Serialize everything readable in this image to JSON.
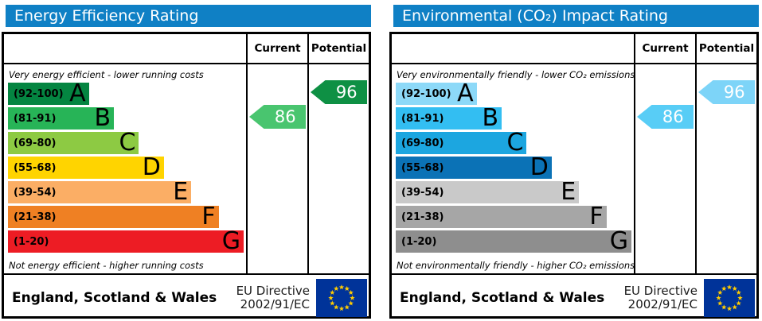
{
  "panels": [
    {
      "title": "Energy Efficiency Rating",
      "title_bg": "#0f80c5",
      "columns": {
        "current_label": "Current",
        "potential_label": "Potential"
      },
      "top_note": "Very energy efficient - lower running costs",
      "bottom_note": "Not energy efficient - higher running costs",
      "bands": [
        {
          "range": "(92-100)",
          "letter": "A",
          "color": "#048541",
          "width_pct": 34
        },
        {
          "range": "(81-91)",
          "letter": "B",
          "color": "#27b457",
          "width_pct": 44.5
        },
        {
          "range": "(69-80)",
          "letter": "C",
          "color": "#8dca43",
          "width_pct": 55
        },
        {
          "range": "(55-68)",
          "letter": "D",
          "color": "#ffd400",
          "width_pct": 65.5
        },
        {
          "range": "(39-54)",
          "letter": "E",
          "color": "#fbae65",
          "width_pct": 77
        },
        {
          "range": "(21-38)",
          "letter": "F",
          "color": "#ef8023",
          "width_pct": 88.5
        },
        {
          "range": "(1-20)",
          "letter": "G",
          "color": "#ed1c24",
          "width_pct": 99
        }
      ],
      "current": {
        "value": "86",
        "color": "#49c56f",
        "band_index": 1
      },
      "potential": {
        "value": "96",
        "color": "#0e9044",
        "band_index": 0
      },
      "footer": {
        "region": "England, Scotland & Wales",
        "directive_line1": "EU Directive",
        "directive_line2": "2002/91/EC",
        "flag_bg": "#003399",
        "star_color": "#ffcc00"
      }
    },
    {
      "title": "Environmental (CO₂) Impact Rating",
      "title_bg": "#0f80c5",
      "columns": {
        "current_label": "Current",
        "potential_label": "Potential"
      },
      "top_note": "Very environmentally friendly - lower CO₂ emissions",
      "bottom_note": "Not environmentally friendly - higher CO₂ emissions",
      "bands": [
        {
          "range": "(92-100)",
          "letter": "A",
          "color": "#8dd9f8",
          "width_pct": 34
        },
        {
          "range": "(81-91)",
          "letter": "B",
          "color": "#33bef2",
          "width_pct": 44.5
        },
        {
          "range": "(69-80)",
          "letter": "C",
          "color": "#1ca6e0",
          "width_pct": 55
        },
        {
          "range": "(55-68)",
          "letter": "D",
          "color": "#0b72b6",
          "width_pct": 65.5
        },
        {
          "range": "(39-54)",
          "letter": "E",
          "color": "#c9c9c9",
          "width_pct": 77
        },
        {
          "range": "(21-38)",
          "letter": "F",
          "color": "#a6a6a6",
          "width_pct": 88.5
        },
        {
          "range": "(1-20)",
          "letter": "G",
          "color": "#8e8e8e",
          "width_pct": 99
        }
      ],
      "current": {
        "value": "86",
        "color": "#58cdf6",
        "band_index": 1
      },
      "potential": {
        "value": "96",
        "color": "#7dd4f8",
        "band_index": 0
      },
      "footer": {
        "region": "England, Scotland & Wales",
        "directive_line1": "EU Directive",
        "directive_line2": "2002/91/EC",
        "flag_bg": "#003399",
        "star_color": "#ffcc00"
      }
    }
  ],
  "chart_data": [
    {
      "type": "bar",
      "title": "Energy Efficiency Rating",
      "categories": [
        "A (92-100)",
        "B (81-91)",
        "C (69-80)",
        "D (55-68)",
        "E (39-54)",
        "F (21-38)",
        "G (1-20)"
      ],
      "band_widths_pct": [
        34,
        44.5,
        55,
        65.5,
        77,
        88.5,
        99
      ],
      "current_rating": 86,
      "current_band": "B",
      "potential_rating": 96,
      "potential_band": "A",
      "top_annotation": "Very energy efficient - lower running costs",
      "bottom_annotation": "Not energy efficient - higher running costs",
      "footer": "England, Scotland & Wales — EU Directive 2002/91/EC"
    },
    {
      "type": "bar",
      "title": "Environmental (CO₂) Impact Rating",
      "categories": [
        "A (92-100)",
        "B (81-91)",
        "C (69-80)",
        "D (55-68)",
        "E (39-54)",
        "F (21-38)",
        "G (1-20)"
      ],
      "band_widths_pct": [
        34,
        44.5,
        55,
        65.5,
        77,
        88.5,
        99
      ],
      "current_rating": 86,
      "current_band": "B",
      "potential_rating": 96,
      "potential_band": "A",
      "top_annotation": "Very environmentally friendly - lower CO₂ emissions",
      "bottom_annotation": "Not environmentally friendly - higher CO₂ emissions",
      "footer": "England, Scotland & Wales — EU Directive 2002/91/EC"
    }
  ]
}
